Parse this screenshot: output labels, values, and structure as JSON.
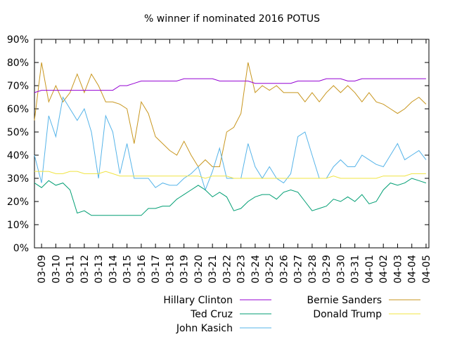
{
  "chart_data": {
    "type": "line",
    "title": "% winner if nominated 2016 POTUS",
    "xlabel": "",
    "ylabel": "",
    "ylim": [
      0,
      90
    ],
    "yticks": [
      "0%",
      "10%",
      "20%",
      "30%",
      "40%",
      "50%",
      "60%",
      "70%",
      "80%",
      "90%"
    ],
    "xticks": [
      "03-09",
      "03-10",
      "03-11",
      "03-12",
      "03-13",
      "03-14",
      "03-15",
      "03-16",
      "03-17",
      "03-18",
      "03-19",
      "03-20",
      "03-21",
      "03-22",
      "03-23",
      "03-24",
      "03-25",
      "03-26",
      "03-27",
      "03-28",
      "03-29",
      "03-30",
      "03-31",
      "04-01",
      "04-02",
      "04-03",
      "04-04",
      "04-05"
    ],
    "grid": false,
    "legend_position": "bottom",
    "x": [
      8.5,
      9.0,
      9.5,
      10.0,
      10.5,
      11.0,
      11.5,
      12.0,
      12.5,
      13.0,
      13.5,
      14.0,
      14.5,
      15.0,
      15.5,
      16.0,
      16.5,
      17.0,
      17.5,
      18.0,
      18.5,
      19.0,
      19.5,
      20.0,
      20.5,
      21.0,
      21.5,
      22.0,
      22.5,
      23.0,
      23.5,
      24.0,
      24.5,
      25.0,
      25.5,
      26.0,
      26.5,
      27.0,
      27.5,
      28.0,
      28.5,
      29.0,
      29.5,
      30.0,
      30.5,
      31.0,
      31.5,
      32.0,
      32.5,
      33.0,
      33.5,
      34.0,
      34.5,
      35.0,
      35.5,
      36.0
    ],
    "series": [
      {
        "name": "Hillary Clinton",
        "color": "#9400d3",
        "values": [
          67,
          68,
          68,
          68,
          68,
          68,
          68,
          68,
          68,
          68,
          68,
          68,
          70,
          70,
          71,
          72,
          72,
          72,
          72,
          72,
          72,
          73,
          73,
          73,
          73,
          73,
          72,
          72,
          72,
          72,
          72,
          71,
          71,
          71,
          71,
          71,
          71,
          72,
          72,
          72,
          72,
          73,
          73,
          73,
          72,
          72,
          73,
          73,
          73,
          73,
          73,
          73,
          73,
          73,
          73,
          73
        ]
      },
      {
        "name": "Bernie Sanders",
        "color": "#c8961e",
        "values": [
          55,
          80,
          63,
          70,
          63,
          67,
          75,
          67,
          75,
          70,
          63,
          63,
          62,
          60,
          45,
          63,
          58,
          48,
          45,
          42,
          40,
          46,
          40,
          35,
          38,
          35,
          35,
          50,
          52,
          58,
          80,
          67,
          70,
          68,
          70,
          67,
          67,
          67,
          63,
          67,
          63,
          67,
          70,
          67,
          70,
          67,
          63,
          67,
          63,
          62,
          60,
          58,
          60,
          63,
          65,
          62
        ]
      },
      {
        "name": "Ted Cruz",
        "color": "#009e73",
        "values": [
          28,
          26,
          29,
          27,
          28,
          25,
          15,
          16,
          14,
          14,
          14,
          14,
          14,
          14,
          14,
          14,
          17,
          17,
          18,
          18,
          21,
          23,
          25,
          27,
          25,
          22,
          24,
          22,
          16,
          17,
          20,
          22,
          23,
          23,
          21,
          24,
          25,
          24,
          20,
          16,
          17,
          18,
          21,
          20,
          22,
          20,
          23,
          19,
          20,
          25,
          28,
          27,
          28,
          30,
          29,
          28
        ]
      },
      {
        "name": "John Kasich",
        "color": "#56b4e9",
        "values": [
          40,
          28,
          57,
          48,
          65,
          60,
          55,
          60,
          50,
          30,
          57,
          50,
          32,
          45,
          30,
          30,
          30,
          26,
          28,
          27,
          27,
          30,
          32,
          35,
          25,
          33,
          43,
          30,
          30,
          30,
          45,
          35,
          30,
          35,
          30,
          28,
          32,
          48,
          50,
          40,
          30,
          30,
          35,
          38,
          35,
          35,
          40,
          38,
          36,
          35,
          40,
          45,
          38,
          40,
          42,
          38
        ]
      },
      {
        "name": "Donald Trump",
        "color": "#f0e442",
        "values": [
          33,
          33,
          33,
          32,
          32,
          33,
          33,
          32,
          32,
          32,
          33,
          32,
          31,
          31,
          31,
          31,
          31,
          31,
          31,
          31,
          31,
          31,
          31,
          31,
          30,
          31,
          31,
          31,
          30,
          30,
          30,
          30,
          30,
          30,
          30,
          30,
          30,
          30,
          30,
          30,
          30,
          30,
          31,
          30,
          30,
          30,
          30,
          30,
          30,
          31,
          31,
          31,
          31,
          32,
          32,
          32
        ]
      }
    ]
  }
}
